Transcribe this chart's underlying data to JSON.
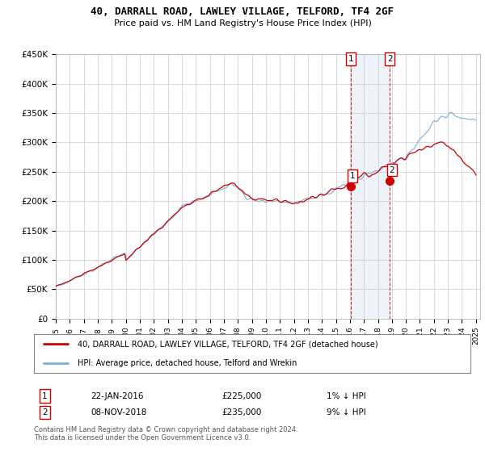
{
  "title": "40, DARRALL ROAD, LAWLEY VILLAGE, TELFORD, TF4 2GF",
  "subtitle": "Price paid vs. HM Land Registry's House Price Index (HPI)",
  "ylim": [
    0,
    450000
  ],
  "yticks": [
    0,
    50000,
    100000,
    150000,
    200000,
    250000,
    300000,
    350000,
    400000,
    450000
  ],
  "ytick_labels": [
    "£0",
    "£50K",
    "£100K",
    "£150K",
    "£200K",
    "£250K",
    "£300K",
    "£350K",
    "£400K",
    "£450K"
  ],
  "x_start_year": 1995,
  "x_end_year": 2025,
  "hpi_color": "#7bafd4",
  "price_color": "#cc0000",
  "sale1_date": 2016.05,
  "sale1_price": 225000,
  "sale1_label": "1",
  "sale2_date": 2018.85,
  "sale2_price": 235000,
  "sale2_label": "2",
  "legend_line1": "40, DARRALL ROAD, LAWLEY VILLAGE, TELFORD, TF4 2GF (detached house)",
  "legend_line2": "HPI: Average price, detached house, Telford and Wrekin",
  "footnote": "Contains HM Land Registry data © Crown copyright and database right 2024.\nThis data is licensed under the Open Government Licence v3.0.",
  "background_color": "#ffffff",
  "plot_bg_color": "#ffffff",
  "grid_color": "#cccccc",
  "shade_color": "#cfddf0"
}
